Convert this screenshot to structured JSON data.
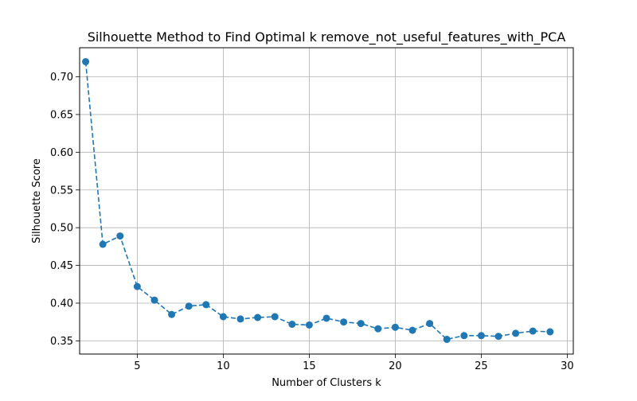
{
  "chart_data": {
    "type": "line",
    "title": "Silhouette Method to Find Optimal k remove_not_useful_features_with_PCA",
    "xlabel": "Number of Clusters k",
    "ylabel": "Silhouette Score",
    "xlim": [
      1.65,
      30.35
    ],
    "ylim": [
      0.3325,
      0.7385
    ],
    "grid": true,
    "line_style": "dashed",
    "marker": "circle",
    "color": "#1f77b4",
    "x_ticks": [
      5,
      10,
      15,
      20,
      25,
      30
    ],
    "x_tick_labels": [
      "5",
      "10",
      "15",
      "20",
      "25",
      "30"
    ],
    "y_ticks": [
      0.35,
      0.4,
      0.45,
      0.5,
      0.55,
      0.6,
      0.65,
      0.7
    ],
    "y_tick_labels": [
      "0.35",
      "0.40",
      "0.45",
      "0.50",
      "0.55",
      "0.60",
      "0.65",
      "0.70"
    ],
    "series": [
      {
        "x": [
          2,
          3,
          4,
          5,
          6,
          7,
          8,
          9,
          10,
          11,
          12,
          13,
          14,
          15,
          16,
          17,
          18,
          19,
          20,
          21,
          22,
          23,
          24,
          25,
          26,
          27,
          28,
          29
        ],
        "values": [
          0.72,
          0.478,
          0.489,
          0.422,
          0.404,
          0.385,
          0.396,
          0.398,
          0.382,
          0.379,
          0.381,
          0.382,
          0.372,
          0.371,
          0.38,
          0.375,
          0.373,
          0.366,
          0.368,
          0.364,
          0.373,
          0.352,
          0.357,
          0.357,
          0.356,
          0.36,
          0.363,
          0.362
        ]
      }
    ]
  }
}
